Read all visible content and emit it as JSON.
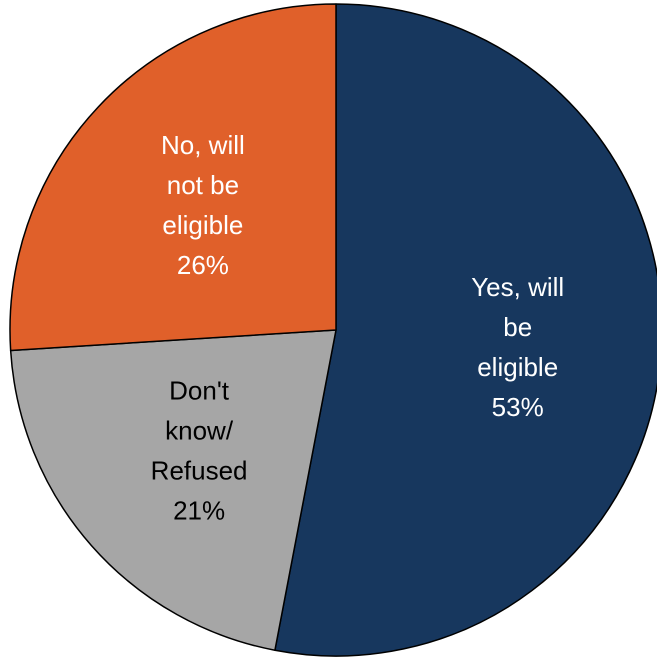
{
  "chart_data": {
    "type": "pie",
    "slices": [
      {
        "lines": [
          "Yes, will",
          "be",
          "eligible",
          "53%"
        ],
        "value": 53,
        "color": "#17375e",
        "label_color": "#ffffff"
      },
      {
        "lines": [
          "Don't",
          "know/",
          "Refused",
          "21%"
        ],
        "value": 21,
        "color": "#a6a6a6",
        "label_color": "#000000"
      },
      {
        "lines": [
          "No, will",
          "not be",
          "eligible",
          "26%"
        ],
        "value": 26,
        "color": "#e0602a",
        "label_color": "#ffffff"
      }
    ],
    "start": "top",
    "direction": "clockwise",
    "edge_color": "#000000"
  }
}
